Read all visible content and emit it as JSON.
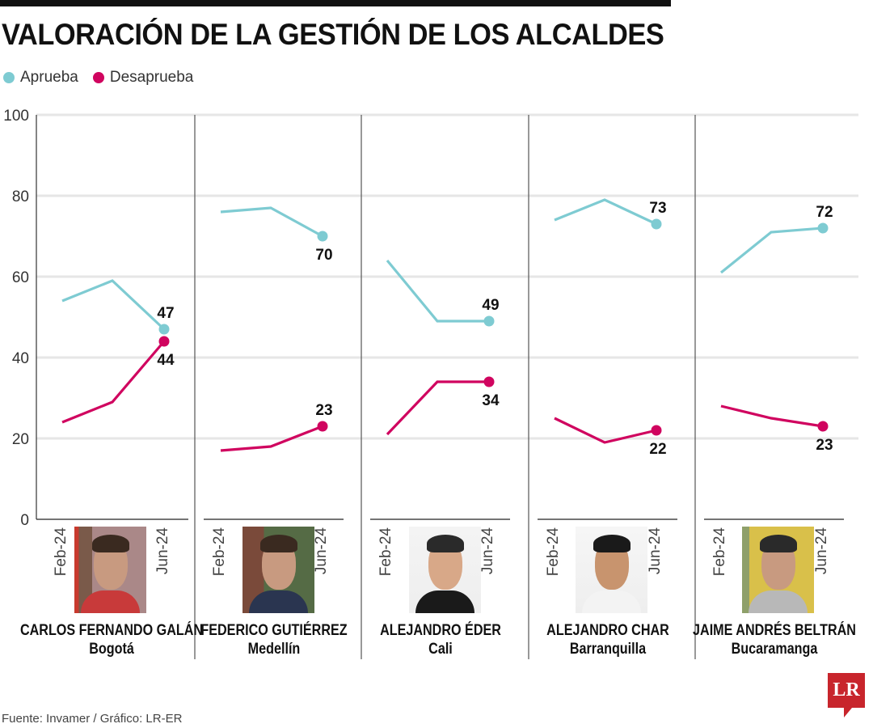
{
  "header": {
    "title": "VALORACIÓN DE LA GESTIÓN DE LOS ALCALDES"
  },
  "legend": [
    {
      "label": "Aprueba",
      "color": "#7ecbd2"
    },
    {
      "label": "Desaprueba",
      "color": "#d0045f"
    }
  ],
  "footer": {
    "source": "Fuente: Invamer / Gráfico: LR-ER",
    "logo": "LR"
  },
  "chart_data": {
    "type": "line",
    "title": "VALORACIÓN DE LA GESTIÓN DE LOS ALCALDES",
    "xlabel": "",
    "ylabel": "",
    "ylim": [
      0,
      100
    ],
    "yticks": [
      0,
      20,
      40,
      60,
      80,
      100
    ],
    "grid": true,
    "legend_position": "top-left",
    "x_tick_labels": [
      "Feb-24",
      "Jun-24"
    ],
    "series_names": [
      "Aprueba",
      "Desaprueba"
    ],
    "panels": [
      {
        "name": "CARLOS FERNANDO GALÁN",
        "city": "Bogotá",
        "aprueba": [
          54,
          59,
          47
        ],
        "desaprueba": [
          24,
          29,
          44
        ]
      },
      {
        "name": "FEDERICO GUTIÉRREZ",
        "city": "Medellín",
        "aprueba": [
          76,
          77,
          70
        ],
        "desaprueba": [
          17,
          18,
          23
        ]
      },
      {
        "name": "ALEJANDRO ÉDER",
        "city": "Cali",
        "aprueba": [
          64,
          49,
          49
        ],
        "desaprueba": [
          21,
          34,
          34
        ]
      },
      {
        "name": "ALEJANDRO CHAR",
        "city": "Barranquilla",
        "aprueba": [
          74,
          79,
          73
        ],
        "desaprueba": [
          25,
          19,
          22
        ]
      },
      {
        "name": "JAIME ANDRÉS BELTRÁN",
        "city": "Bucaramanga",
        "aprueba": [
          61,
          71,
          72
        ],
        "desaprueba": [
          28,
          25,
          23
        ]
      }
    ],
    "label_placement": [
      {
        "aprueba": "above",
        "desaprueba": "below"
      },
      {
        "aprueba": "below",
        "desaprueba": "above"
      },
      {
        "aprueba": "above",
        "desaprueba": "below"
      },
      {
        "aprueba": "above",
        "desaprueba": "below"
      },
      {
        "aprueba": "above",
        "desaprueba": "below"
      }
    ]
  }
}
